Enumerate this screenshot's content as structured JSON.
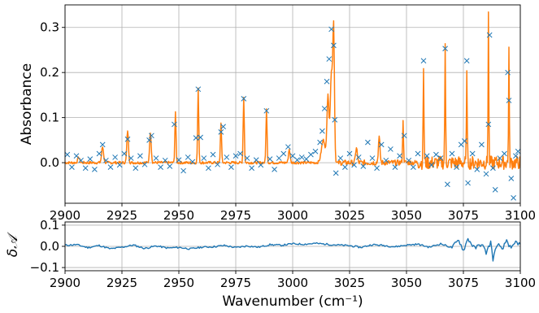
{
  "chart_data": [
    {
      "type": "scatter",
      "ylabel": "Absorbance",
      "xlabel": "",
      "xlim": [
        2900,
        3100
      ],
      "ylim": [
        -0.09,
        0.35
      ],
      "x_ticks": [
        2900,
        2925,
        2950,
        2975,
        3000,
        3025,
        3050,
        3075,
        3100
      ],
      "x_tick_labels": [
        "2900",
        "2925",
        "2950",
        "2975",
        "3000",
        "3025",
        "3050",
        "3075",
        "3100"
      ],
      "y_ticks": [
        0.0,
        0.1,
        0.2,
        0.3
      ],
      "y_tick_labels": [
        "0.0",
        "0.1",
        "0.2",
        "0.3"
      ],
      "grid": true,
      "colors": {
        "measured": "#1f77b4",
        "model": "#ff7f0e"
      },
      "series": [
        {
          "kind": "markers",
          "marker": "x",
          "color": "#1f77b4",
          "points": [
            [
              2901,
              0.018
            ],
            [
              2903,
              -0.01
            ],
            [
              2905,
              0.015
            ],
            [
              2907,
              0.005
            ],
            [
              2909,
              -0.012
            ],
            [
              2911,
              0.008
            ],
            [
              2913,
              -0.015
            ],
            [
              2915,
              0.02
            ],
            [
              2916.5,
              0.04
            ],
            [
              2918,
              0.005
            ],
            [
              2920,
              -0.01
            ],
            [
              2922,
              0.012
            ],
            [
              2924,
              -0.005
            ],
            [
              2926,
              0.02
            ],
            [
              2927.5,
              0.052
            ],
            [
              2929,
              0.01
            ],
            [
              2931,
              -0.012
            ],
            [
              2933,
              0.015
            ],
            [
              2935,
              -0.004
            ],
            [
              2937,
              0.05
            ],
            [
              2938,
              0.06
            ],
            [
              2940,
              0.01
            ],
            [
              2942,
              -0.01
            ],
            [
              2944,
              0.005
            ],
            [
              2946,
              -0.008
            ],
            [
              2948,
              0.085
            ],
            [
              2950,
              0.006
            ],
            [
              2952,
              -0.018
            ],
            [
              2954,
              0.012
            ],
            [
              2956,
              0.002
            ],
            [
              2957.5,
              0.055
            ],
            [
              2958.5,
              0.163
            ],
            [
              2959.5,
              0.056
            ],
            [
              2961,
              0.01
            ],
            [
              2963,
              -0.012
            ],
            [
              2965,
              0.018
            ],
            [
              2967,
              -0.004
            ],
            [
              2968.5,
              0.068
            ],
            [
              2969.5,
              0.08
            ],
            [
              2971,
              0.012
            ],
            [
              2973,
              -0.01
            ],
            [
              2975,
              0.015
            ],
            [
              2977,
              0.02
            ],
            [
              2978.5,
              0.142
            ],
            [
              2980,
              0.01
            ],
            [
              2982,
              -0.012
            ],
            [
              2984,
              0.006
            ],
            [
              2986,
              -0.005
            ],
            [
              2988.5,
              0.115
            ],
            [
              2990,
              0.008
            ],
            [
              2992,
              -0.015
            ],
            [
              2994,
              0.01
            ],
            [
              2996,
              0.02
            ],
            [
              2998,
              0.035
            ],
            [
              3000,
              0.015
            ],
            [
              3002,
              0.006
            ],
            [
              3004,
              0.012
            ],
            [
              3006,
              0.008
            ],
            [
              3008,
              0.018
            ],
            [
              3010,
              0.025
            ],
            [
              3012,
              0.045
            ],
            [
              3013,
              0.07
            ],
            [
              3014,
              0.12
            ],
            [
              3015,
              0.18
            ],
            [
              3016,
              0.23
            ],
            [
              3017,
              0.296
            ],
            [
              3018,
              0.26
            ],
            [
              3018.5,
              0.095
            ],
            [
              3019,
              -0.023
            ],
            [
              3021,
              0.01
            ],
            [
              3023,
              -0.01
            ],
            [
              3025,
              0.02
            ],
            [
              3027,
              -0.005
            ],
            [
              3029,
              0.012
            ],
            [
              3031,
              -0.008
            ],
            [
              3033,
              0.045
            ],
            [
              3035,
              0.01
            ],
            [
              3037,
              -0.012
            ],
            [
              3039,
              0.04
            ],
            [
              3041,
              0.005
            ],
            [
              3043,
              0.03
            ],
            [
              3045,
              -0.01
            ],
            [
              3047,
              0.015
            ],
            [
              3049,
              0.06
            ],
            [
              3051,
              0.005
            ],
            [
              3053,
              -0.01
            ],
            [
              3055,
              0.02
            ],
            [
              3057.5,
              0.226
            ],
            [
              3059,
              0.015
            ],
            [
              3061,
              -0.005
            ],
            [
              3063,
              0.018
            ],
            [
              3065,
              0.01
            ],
            [
              3067,
              0.253
            ],
            [
              3068,
              -0.048
            ],
            [
              3070,
              0.02
            ],
            [
              3072,
              -0.01
            ],
            [
              3074,
              0.04
            ],
            [
              3075.5,
              0.048
            ],
            [
              3076.5,
              0.226
            ],
            [
              3077,
              -0.045
            ],
            [
              3079,
              0.02
            ],
            [
              3081,
              -0.015
            ],
            [
              3083,
              0.04
            ],
            [
              3085,
              -0.025
            ],
            [
              3086,
              0.085
            ],
            [
              3086.5,
              0.283
            ],
            [
              3088,
              -0.012
            ],
            [
              3089,
              -0.06
            ],
            [
              3091,
              0.01
            ],
            [
              3093,
              0.02
            ],
            [
              3094.5,
              0.2
            ],
            [
              3095,
              0.138
            ],
            [
              3096,
              -0.035
            ],
            [
              3097,
              -0.078
            ],
            [
              3098,
              0.015
            ],
            [
              3099,
              0.025
            ]
          ]
        },
        {
          "kind": "line",
          "color": "#ff7f0e",
          "baseline": 0.0,
          "peaks": [
            [
              2906,
              0.012,
              0.6
            ],
            [
              2916.5,
              0.035,
              0.6
            ],
            [
              2927.5,
              0.072,
              0.5
            ],
            [
              2937.5,
              0.068,
              0.5
            ],
            [
              2948.5,
              0.113,
              0.35
            ],
            [
              2958.5,
              0.163,
              0.35
            ],
            [
              2968.5,
              0.09,
              0.35
            ],
            [
              2978.5,
              0.145,
              0.35
            ],
            [
              2988.5,
              0.118,
              0.35
            ],
            [
              2998.5,
              0.03,
              0.5
            ],
            [
              3013.5,
              0.05,
              1.2
            ],
            [
              3015.5,
              0.15,
              0.6
            ],
            [
              3017,
              0.2,
              0.7
            ],
            [
              3018,
              0.29,
              0.5
            ],
            [
              3028,
              0.035,
              0.5
            ],
            [
              3038,
              0.055,
              0.5
            ],
            [
              3048.5,
              0.09,
              0.3
            ],
            [
              3057.5,
              0.213,
              0.25
            ],
            [
              3067,
              0.253,
              0.25
            ],
            [
              3076.5,
              0.218,
              0.22
            ],
            [
              3086,
              0.335,
              0.22
            ],
            [
              3095,
              0.252,
              0.22
            ]
          ]
        }
      ]
    },
    {
      "type": "line",
      "ylabel": "δ𝒜",
      "xlabel": "Wavenumber (cm⁻¹)",
      "xlim": [
        2900,
        3100
      ],
      "ylim": [
        -0.115,
        0.115
      ],
      "x_ticks": [
        2900,
        2925,
        2950,
        2975,
        3000,
        3025,
        3050,
        3075,
        3100
      ],
      "x_tick_labels": [
        "2900",
        "2925",
        "2950",
        "2975",
        "3000",
        "3025",
        "3050",
        "3075",
        "3100"
      ],
      "y_ticks": [
        -0.1,
        0.0,
        0.1
      ],
      "y_tick_labels": [
        "−0.1",
        "0.0",
        "0.1"
      ],
      "grid": true,
      "series": [
        {
          "kind": "line",
          "color": "#1f77b4",
          "x": [
            2900,
            2905,
            2910,
            2915,
            2920,
            2925,
            2930,
            2935,
            2940,
            2945,
            2950,
            2955,
            2960,
            2965,
            2970,
            2975,
            2980,
            2985,
            2990,
            2995,
            3000,
            3005,
            3010,
            3015,
            3020,
            3025,
            3030,
            3035,
            3040,
            3045,
            3050,
            3055,
            3060,
            3065,
            3070,
            3073,
            3075,
            3077,
            3080,
            3083,
            3085,
            3087,
            3088,
            3090,
            3092,
            3094,
            3096,
            3098,
            3100
          ],
          "y": [
            0.005,
            0.008,
            -0.006,
            0.004,
            -0.012,
            -0.004,
            0.006,
            -0.01,
            0.002,
            -0.008,
            -0.005,
            -0.012,
            -0.004,
            -0.002,
            0.004,
            -0.006,
            0.002,
            -0.004,
            0.008,
            0.005,
            0.012,
            0.01,
            0.014,
            0.01,
            0.006,
            0.003,
            -0.005,
            0.008,
            0.004,
            -0.002,
            0.006,
            0.01,
            -0.004,
            0.012,
            -0.006,
            0.03,
            -0.02,
            0.036,
            -0.01,
            0.012,
            -0.03,
            0.02,
            -0.06,
            0.015,
            -0.02,
            0.03,
            -0.015,
            0.02,
            0.01
          ]
        }
      ]
    }
  ]
}
